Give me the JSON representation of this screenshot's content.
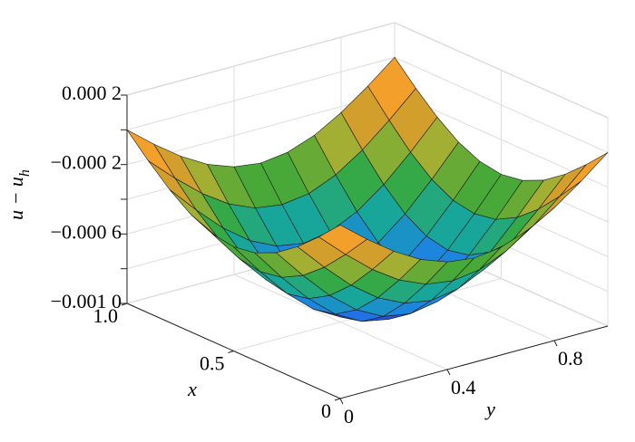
{
  "chart_data": {
    "type": "surface",
    "xlabel": "x",
    "ylabel": "y",
    "zlabel": "u − u",
    "zlabel_sub": "h",
    "x": [
      0,
      0.1,
      0.2,
      0.3,
      0.4,
      0.5,
      0.6,
      0.7,
      0.8,
      0.9,
      1
    ],
    "y": [
      0,
      0.1,
      0.2,
      0.3,
      0.4,
      0.5,
      0.6,
      0.7,
      0.8,
      0.9,
      1
    ],
    "z": [
      [
        0,
        -0.000124,
        -0.000235,
        -0.000324,
        -0.00038,
        -0.0004,
        -0.00038,
        -0.000324,
        -0.000235,
        -0.000124,
        0
      ],
      [
        -0.000124,
        -0.000266,
        -0.000395,
        -0.000497,
        -0.000563,
        -0.000585,
        -0.000563,
        -0.000497,
        -0.000395,
        -0.000266,
        -0.000124
      ],
      [
        -0.000235,
        -0.000395,
        -0.00054,
        -0.000654,
        -0.000727,
        -0.000753,
        -0.000727,
        -0.000654,
        -0.00054,
        -0.000395,
        -0.000235
      ],
      [
        -0.000324,
        -0.000497,
        -0.000654,
        -0.000778,
        -0.000858,
        -0.000885,
        -0.000858,
        -0.000778,
        -0.000654,
        -0.000497,
        -0.000324
      ],
      [
        -0.00038,
        -0.000563,
        -0.000727,
        -0.000858,
        -0.000942,
        -0.000971,
        -0.000942,
        -0.000858,
        -0.000727,
        -0.000563,
        -0.00038
      ],
      [
        -0.0004,
        -0.000585,
        -0.000753,
        -0.000885,
        -0.000971,
        -0.001,
        -0.000971,
        -0.000885,
        -0.000753,
        -0.000585,
        -0.0004
      ],
      [
        -0.00038,
        -0.000563,
        -0.000727,
        -0.000858,
        -0.000942,
        -0.000971,
        -0.000942,
        -0.000858,
        -0.000727,
        -0.000563,
        -0.00038
      ],
      [
        -0.000324,
        -0.000497,
        -0.000654,
        -0.000778,
        -0.000858,
        -0.000885,
        -0.000858,
        -0.000778,
        -0.000654,
        -0.000497,
        -0.000324
      ],
      [
        -0.000235,
        -0.000395,
        -0.00054,
        -0.000654,
        -0.000727,
        -0.000753,
        -0.000727,
        -0.000654,
        -0.00054,
        -0.000395,
        -0.000235
      ],
      [
        -0.000124,
        -0.000266,
        -0.000395,
        -0.000497,
        -0.000563,
        -0.000585,
        -0.000563,
        -0.000497,
        -0.000395,
        -0.000266,
        -0.000124
      ],
      [
        0,
        -0.000124,
        -0.000235,
        -0.000324,
        -0.00038,
        -0.0004,
        -0.00038,
        -0.000324,
        -0.000235,
        -0.000124,
        0
      ]
    ],
    "xlim": [
      0,
      1
    ],
    "ylim": [
      0,
      1
    ],
    "zlim": [
      -0.001,
      0.0002
    ],
    "xticks": [
      0,
      0.5,
      {
        "value": 1,
        "label": "1.0"
      }
    ],
    "yticks": [
      0,
      0.4,
      0.8
    ],
    "zticks": [
      {
        "value": -0.001,
        "label": "−0.001 0"
      },
      {
        "value": -0.0008,
        "label": null
      },
      {
        "value": -0.0006,
        "label": "−0.000 6"
      },
      {
        "value": -0.0004,
        "label": null
      },
      {
        "value": -0.0002,
        "label": "−0.000 2"
      },
      {
        "value": 0,
        "label": null
      },
      {
        "value": 0.0002,
        "label": "0.000 2"
      }
    ],
    "grid": true,
    "colormap": [
      "#2a2ad0",
      "#1f7fe8",
      "#17a6a0",
      "#3aa83a",
      "#b8b030",
      "#f08a28",
      "#fbe634"
    ]
  }
}
